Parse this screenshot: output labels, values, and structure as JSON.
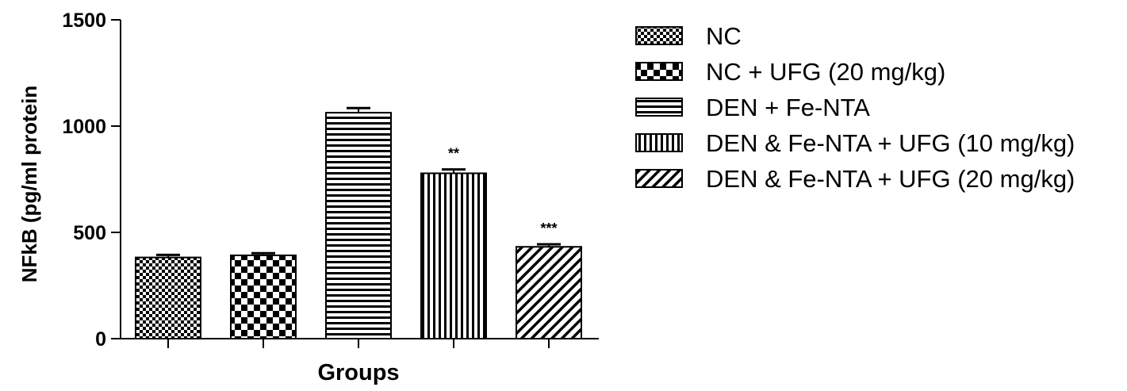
{
  "chart_data": {
    "type": "bar",
    "title": "",
    "xlabel": "Groups",
    "ylabel": "NFkB (pg/ml protein",
    "ylim": [
      0,
      1500
    ],
    "yticks": [
      0,
      500,
      1000,
      1500
    ],
    "ytick_labels": [
      "0",
      "500",
      "1000",
      "1500"
    ],
    "grid": false,
    "legend_position": "right",
    "categories": [
      "NC",
      "NC + UFG (20 mg/kg)",
      "DEN + Fe-NTA",
      "DEN & Fe-NTA + UFG (10 mg/kg)",
      "DEN & Fe-NTA + UFG (20 mg/kg)"
    ],
    "values": [
      382,
      392,
      1063,
      778,
      432
    ],
    "errors": [
      12,
      10,
      22,
      18,
      12
    ],
    "annotations": [
      "",
      "",
      "",
      "**",
      "***"
    ],
    "patterns": [
      "checker-fine",
      "checker-coarse",
      "h-stripes",
      "v-stripes",
      "diagonal"
    ],
    "colors": {
      "ink": "#000000",
      "background": "#ffffff"
    }
  }
}
